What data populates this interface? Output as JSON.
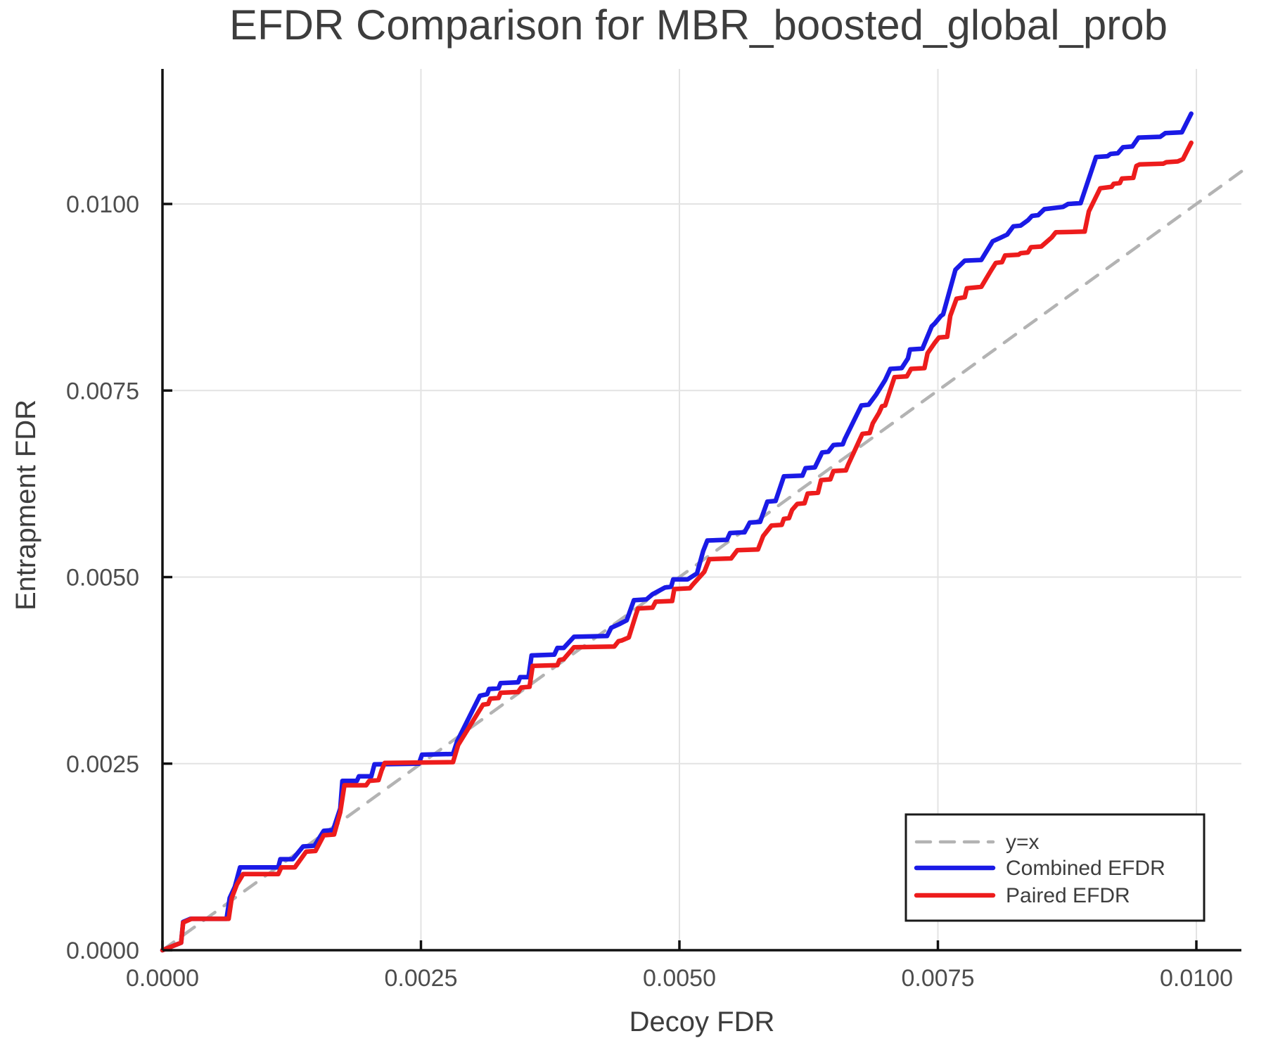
{
  "chart_data": {
    "type": "line",
    "title": "EFDR Comparison for MBR_boosted_global_prob",
    "xlabel": "Decoy FDR",
    "ylabel": "Entrapment FDR",
    "xlim": [
      0.0,
      0.01044
    ],
    "ylim": [
      0.0,
      0.0118
    ],
    "grid": true,
    "legend_position": "bottom-right",
    "x_ticks": [
      {
        "v": 0.0,
        "label": "0.0000"
      },
      {
        "v": 0.0025,
        "label": "0.0025"
      },
      {
        "v": 0.005,
        "label": "0.0050"
      },
      {
        "v": 0.0075,
        "label": "0.0075"
      },
      {
        "v": 0.01,
        "label": "0.0100"
      }
    ],
    "y_ticks": [
      {
        "v": 0.0,
        "label": "0.0000"
      },
      {
        "v": 0.0025,
        "label": "0.0025"
      },
      {
        "v": 0.005,
        "label": "0.0050"
      },
      {
        "v": 0.0075,
        "label": "0.0075"
      },
      {
        "v": 0.01,
        "label": "0.0100"
      }
    ],
    "colors": {
      "background": "#ffffff",
      "grid": "#e3e3e3",
      "spine": "#111111",
      "text": "#3d3d3d",
      "tick_text": "#4d4d4d",
      "legend_border": "#1a1a1a"
    },
    "series": [
      {
        "name": "y=x",
        "color": "#b3b3b3",
        "dashed": true,
        "width": 4.5,
        "points": [
          [
            0.0,
            0.0
          ],
          [
            0.01044,
            0.01044
          ]
        ]
      },
      {
        "name": "Combined EFDR",
        "color": "#1a1ae6",
        "dashed": false,
        "width": 6.5,
        "points": [
          [
            0.0,
            0.0
          ],
          [
            0.00018,
            0.0001
          ],
          [
            0.0002,
            0.00038
          ],
          [
            0.00027,
            0.00042
          ],
          [
            0.00062,
            0.00042
          ],
          [
            0.00065,
            0.0007
          ],
          [
            0.0007,
            0.00085
          ],
          [
            0.00075,
            0.00111
          ],
          [
            0.00112,
            0.00111
          ],
          [
            0.00114,
            0.00122
          ],
          [
            0.00126,
            0.00122
          ],
          [
            0.00136,
            0.00139
          ],
          [
            0.00147,
            0.0014
          ],
          [
            0.00156,
            0.0016
          ],
          [
            0.00165,
            0.00161
          ],
          [
            0.00172,
            0.0019
          ],
          [
            0.00174,
            0.00227
          ],
          [
            0.00188,
            0.00227
          ],
          [
            0.0019,
            0.00233
          ],
          [
            0.00202,
            0.00233
          ],
          [
            0.00205,
            0.00249
          ],
          [
            0.00248,
            0.0025
          ],
          [
            0.00251,
            0.00262
          ],
          [
            0.00281,
            0.00263
          ],
          [
            0.00285,
            0.0028
          ],
          [
            0.00307,
            0.00341
          ],
          [
            0.00314,
            0.00343
          ],
          [
            0.00316,
            0.0035
          ],
          [
            0.00325,
            0.00351
          ],
          [
            0.00327,
            0.00358
          ],
          [
            0.00344,
            0.00359
          ],
          [
            0.00346,
            0.00366
          ],
          [
            0.00354,
            0.00366
          ],
          [
            0.00357,
            0.00395
          ],
          [
            0.00379,
            0.00396
          ],
          [
            0.00382,
            0.00405
          ],
          [
            0.00388,
            0.00405
          ],
          [
            0.00398,
            0.0042
          ],
          [
            0.0043,
            0.00421
          ],
          [
            0.00434,
            0.00432
          ],
          [
            0.00442,
            0.00437
          ],
          [
            0.00449,
            0.00442
          ],
          [
            0.00456,
            0.00469
          ],
          [
            0.00468,
            0.0047
          ],
          [
            0.00474,
            0.00477
          ],
          [
            0.00486,
            0.00486
          ],
          [
            0.00492,
            0.00487
          ],
          [
            0.00494,
            0.00497
          ],
          [
            0.00508,
            0.00497
          ],
          [
            0.00517,
            0.00505
          ],
          [
            0.00523,
            0.00535
          ],
          [
            0.00527,
            0.00549
          ],
          [
            0.00546,
            0.0055
          ],
          [
            0.00549,
            0.00559
          ],
          [
            0.00563,
            0.0056
          ],
          [
            0.00568,
            0.00573
          ],
          [
            0.00578,
            0.00574
          ],
          [
            0.00585,
            0.00601
          ],
          [
            0.00593,
            0.00602
          ],
          [
            0.00601,
            0.00635
          ],
          [
            0.00619,
            0.00636
          ],
          [
            0.00622,
            0.00646
          ],
          [
            0.00631,
            0.00647
          ],
          [
            0.00638,
            0.00667
          ],
          [
            0.00644,
            0.00668
          ],
          [
            0.00649,
            0.00677
          ],
          [
            0.00658,
            0.00678
          ],
          [
            0.0066,
            0.00685
          ],
          [
            0.00676,
            0.0073
          ],
          [
            0.00683,
            0.00731
          ],
          [
            0.0069,
            0.00744
          ],
          [
            0.00699,
            0.00764
          ],
          [
            0.00704,
            0.00779
          ],
          [
            0.00715,
            0.0078
          ],
          [
            0.00721,
            0.00793
          ],
          [
            0.00723,
            0.00805
          ],
          [
            0.00735,
            0.00806
          ],
          [
            0.00744,
            0.00836
          ],
          [
            0.00747,
            0.0084
          ],
          [
            0.00753,
            0.0085
          ],
          [
            0.00755,
            0.00852
          ],
          [
            0.00767,
            0.00912
          ],
          [
            0.00776,
            0.00924
          ],
          [
            0.00792,
            0.00925
          ],
          [
            0.00803,
            0.0095
          ],
          [
            0.00811,
            0.00955
          ],
          [
            0.00817,
            0.00959
          ],
          [
            0.00823,
            0.0097
          ],
          [
            0.0083,
            0.00971
          ],
          [
            0.00837,
            0.00978
          ],
          [
            0.00841,
            0.00984
          ],
          [
            0.00847,
            0.00985
          ],
          [
            0.00853,
            0.00993
          ],
          [
            0.00871,
            0.00996
          ],
          [
            0.00876,
            0.01
          ],
          [
            0.00888,
            0.01001
          ],
          [
            0.00903,
            0.01063
          ],
          [
            0.00914,
            0.01064
          ],
          [
            0.00917,
            0.01067
          ],
          [
            0.00924,
            0.01068
          ],
          [
            0.00929,
            0.01076
          ],
          [
            0.00938,
            0.01077
          ],
          [
            0.00944,
            0.01089
          ],
          [
            0.00965,
            0.0109
          ],
          [
            0.0097,
            0.01095
          ],
          [
            0.00986,
            0.01096
          ],
          [
            0.00995,
            0.01121
          ]
        ]
      },
      {
        "name": "Paired EFDR",
        "color": "#ed1c1c",
        "dashed": false,
        "width": 6.5,
        "points": [
          [
            0.0,
            0.0
          ],
          [
            0.00018,
            0.0001
          ],
          [
            0.0002,
            0.00037
          ],
          [
            0.00028,
            0.00042
          ],
          [
            0.00064,
            0.00042
          ],
          [
            0.00067,
            0.0007
          ],
          [
            0.00072,
            0.00088
          ],
          [
            0.00078,
            0.00102
          ],
          [
            0.00112,
            0.00102
          ],
          [
            0.00115,
            0.00111
          ],
          [
            0.00128,
            0.00111
          ],
          [
            0.00139,
            0.00132
          ],
          [
            0.00148,
            0.00133
          ],
          [
            0.00156,
            0.00154
          ],
          [
            0.00166,
            0.00155
          ],
          [
            0.00172,
            0.00185
          ],
          [
            0.00176,
            0.00221
          ],
          [
            0.00197,
            0.00221
          ],
          [
            0.002,
            0.00227
          ],
          [
            0.00209,
            0.00228
          ],
          [
            0.00212,
            0.00241
          ],
          [
            0.00215,
            0.00251
          ],
          [
            0.00281,
            0.00252
          ],
          [
            0.00286,
            0.00275
          ],
          [
            0.0031,
            0.00329
          ],
          [
            0.00315,
            0.0033
          ],
          [
            0.00317,
            0.00337
          ],
          [
            0.00325,
            0.00338
          ],
          [
            0.00327,
            0.00345
          ],
          [
            0.00344,
            0.00346
          ],
          [
            0.00347,
            0.00352
          ],
          [
            0.00355,
            0.00353
          ],
          [
            0.00358,
            0.00381
          ],
          [
            0.00382,
            0.00382
          ],
          [
            0.00384,
            0.00389
          ],
          [
            0.00388,
            0.0039
          ],
          [
            0.00398,
            0.00406
          ],
          [
            0.00437,
            0.00407
          ],
          [
            0.00441,
            0.00414
          ],
          [
            0.00444,
            0.00415
          ],
          [
            0.00451,
            0.00419
          ],
          [
            0.00458,
            0.0045
          ],
          [
            0.0046,
            0.00458
          ],
          [
            0.00474,
            0.00459
          ],
          [
            0.00477,
            0.00467
          ],
          [
            0.00493,
            0.00468
          ],
          [
            0.00495,
            0.00484
          ],
          [
            0.0051,
            0.00485
          ],
          [
            0.00513,
            0.0049
          ],
          [
            0.00524,
            0.00507
          ],
          [
            0.00529,
            0.00524
          ],
          [
            0.0055,
            0.00525
          ],
          [
            0.00556,
            0.00536
          ],
          [
            0.00576,
            0.00537
          ],
          [
            0.00581,
            0.00555
          ],
          [
            0.00589,
            0.00569
          ],
          [
            0.00599,
            0.0057
          ],
          [
            0.00601,
            0.00578
          ],
          [
            0.00606,
            0.00579
          ],
          [
            0.00609,
            0.0059
          ],
          [
            0.00614,
            0.00598
          ],
          [
            0.00621,
            0.00599
          ],
          [
            0.00624,
            0.00612
          ],
          [
            0.00634,
            0.00613
          ],
          [
            0.00637,
            0.0063
          ],
          [
            0.00646,
            0.00631
          ],
          [
            0.00649,
            0.00642
          ],
          [
            0.00661,
            0.00643
          ],
          [
            0.00663,
            0.0065
          ],
          [
            0.00677,
            0.00692
          ],
          [
            0.00684,
            0.00693
          ],
          [
            0.00687,
            0.00706
          ],
          [
            0.00693,
            0.0072
          ],
          [
            0.00696,
            0.00729
          ],
          [
            0.00699,
            0.0073
          ],
          [
            0.00708,
            0.00768
          ],
          [
            0.0072,
            0.00769
          ],
          [
            0.00724,
            0.00779
          ],
          [
            0.00737,
            0.0078
          ],
          [
            0.0074,
            0.008
          ],
          [
            0.00747,
            0.00814
          ],
          [
            0.00751,
            0.00821
          ],
          [
            0.00759,
            0.00822
          ],
          [
            0.00762,
            0.0085
          ],
          [
            0.00768,
            0.00873
          ],
          [
            0.00776,
            0.00875
          ],
          [
            0.00778,
            0.00887
          ],
          [
            0.00792,
            0.00889
          ],
          [
            0.00801,
            0.0091
          ],
          [
            0.00806,
            0.00921
          ],
          [
            0.00812,
            0.00922
          ],
          [
            0.00815,
            0.00931
          ],
          [
            0.00828,
            0.00932
          ],
          [
            0.0083,
            0.00934
          ],
          [
            0.00837,
            0.00935
          ],
          [
            0.0084,
            0.00942
          ],
          [
            0.0085,
            0.00943
          ],
          [
            0.0086,
            0.00955
          ],
          [
            0.00864,
            0.00962
          ],
          [
            0.00892,
            0.00963
          ],
          [
            0.00896,
            0.0099
          ],
          [
            0.00907,
            0.01021
          ],
          [
            0.00918,
            0.01023
          ],
          [
            0.0092,
            0.01027
          ],
          [
            0.00926,
            0.01028
          ],
          [
            0.00928,
            0.01034
          ],
          [
            0.00939,
            0.01035
          ],
          [
            0.00942,
            0.01051
          ],
          [
            0.00945,
            0.01053
          ],
          [
            0.00968,
            0.01054
          ],
          [
            0.00971,
            0.01056
          ],
          [
            0.00982,
            0.01057
          ],
          [
            0.00987,
            0.0106
          ],
          [
            0.00995,
            0.01082
          ]
        ]
      }
    ]
  }
}
